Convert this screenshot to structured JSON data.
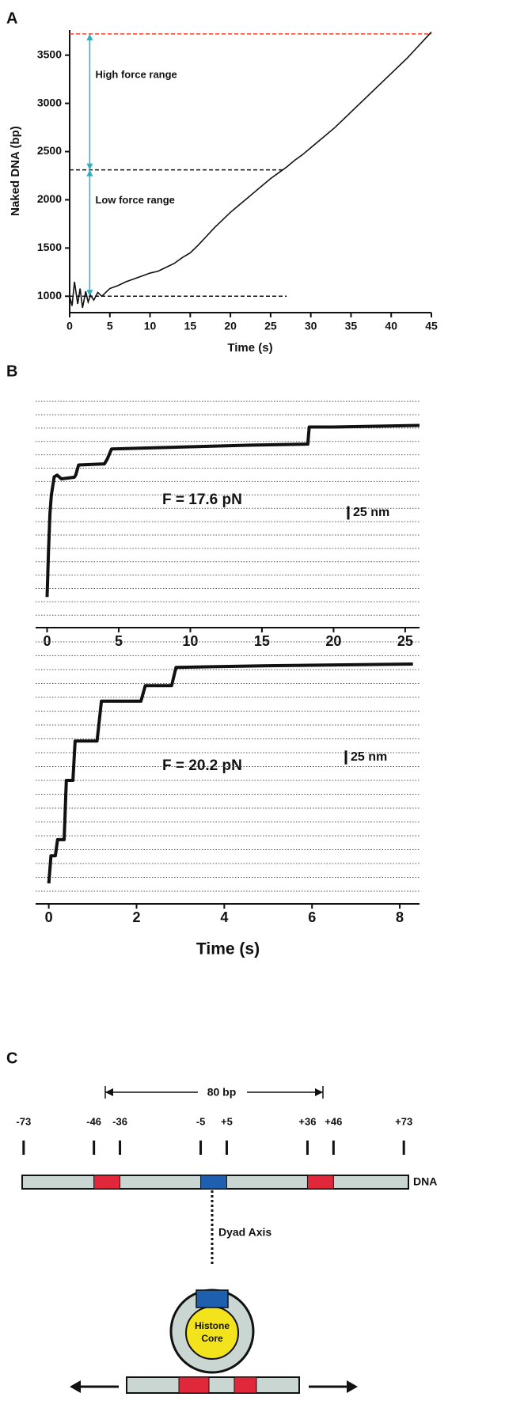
{
  "chart_data": [
    {
      "type": "line",
      "panel_label": "A",
      "x_label": "Time (s)",
      "y_label": "Naked DNA (bp)",
      "xlim": [
        0,
        45
      ],
      "ylim": [
        830,
        3760
      ],
      "xticks": [
        0,
        5,
        10,
        15,
        20,
        25,
        30,
        35,
        40,
        45
      ],
      "yticks": [
        1000,
        1500,
        2000,
        2500,
        3000,
        3500
      ],
      "series": [
        {
          "color": "#111111",
          "x": [
            0,
            0.3,
            0.6,
            1,
            1.3,
            1.6,
            2,
            2.3,
            2.6,
            3,
            3.5,
            4,
            5,
            6,
            7,
            8,
            9,
            10,
            11,
            12,
            13,
            14,
            15,
            16,
            17,
            18,
            19,
            20,
            21,
            22,
            23,
            24,
            25,
            26,
            27,
            28,
            29,
            30,
            31,
            32,
            33,
            34,
            35,
            36,
            37,
            38,
            39,
            40,
            41,
            42,
            43,
            44,
            45
          ],
          "values": [
            1000,
            900,
            1150,
            920,
            1080,
            880,
            1050,
            940,
            1010,
            960,
            1040,
            1000,
            1080,
            1110,
            1150,
            1180,
            1210,
            1240,
            1260,
            1300,
            1340,
            1400,
            1450,
            1530,
            1620,
            1710,
            1790,
            1870,
            1940,
            2010,
            2080,
            2150,
            2220,
            2280,
            2340,
            2410,
            2470,
            2540,
            2610,
            2680,
            2750,
            2830,
            2910,
            2990,
            3070,
            3150,
            3230,
            3310,
            3390,
            3470,
            3560,
            3650,
            3740
          ]
        }
      ],
      "reference_lines": [
        {
          "value": 3720,
          "x_end": 45,
          "color": "#e8432a"
        },
        {
          "value": 2310,
          "x_end": 26.5,
          "color": "#111111"
        },
        {
          "value": 1000,
          "x_end": 27,
          "color": "#111111"
        }
      ],
      "arrow": {
        "x": 2.5,
        "color": "#2ab0c0"
      },
      "annotations": [
        {
          "text": "High force range",
          "x": 3.2,
          "y": 3290
        },
        {
          "text": "Low force range",
          "x": 3.2,
          "y": 1990
        }
      ]
    },
    {
      "type": "step-trace",
      "panel_label": "B",
      "annotation": "F = 17.6 pN",
      "xlim": [
        -0.8,
        26
      ],
      "ylim": [
        -10,
        415
      ],
      "xticks": [
        0,
        5,
        10,
        15,
        20,
        25
      ],
      "scale_bar": {
        "value": 25,
        "label": "25 nm"
      },
      "series": [
        {
          "color": "#111111",
          "x": [
            0,
            0.1,
            0.2,
            0.3,
            0.5,
            0.7,
            1.0,
            1.9,
            2.0,
            2.2,
            4.0,
            4.2,
            4.5,
            6,
            10,
            14,
            18.2,
            18.3,
            20,
            26
          ],
          "values": [
            34,
            120,
            190,
            225,
            259,
            262,
            255,
            258,
            262,
            281,
            283,
            292,
            311,
            312,
            315,
            318,
            320,
            352,
            352,
            355
          ]
        }
      ]
    },
    {
      "type": "step-trace",
      "annotation": "F = 20.2 pN",
      "x_label": "Time (s)",
      "xlim": [
        -0.3,
        8.45
      ],
      "ylim": [
        -10,
        470
      ],
      "xticks": [
        0,
        2,
        4,
        6,
        8
      ],
      "scale_bar": {
        "value": 25,
        "label": "25 nm"
      },
      "series": [
        {
          "color": "#111111",
          "x": [
            0,
            0.05,
            0.15,
            0.2,
            0.35,
            0.4,
            0.55,
            0.6,
            1.1,
            1.2,
            2.1,
            2.2,
            2.8,
            2.9,
            5,
            8.3
          ],
          "values": [
            14,
            64,
            64,
            93,
            93,
            200,
            200,
            271,
            271,
            343,
            343,
            371,
            371,
            404,
            407,
            410
          ]
        }
      ]
    }
  ],
  "diagram": {
    "panel_label": "C",
    "spacing_label": "80 bp",
    "positions": [
      -73,
      -46,
      -36,
      -5,
      {
        "value": 5,
        "label": "+5"
      },
      {
        "value": 36,
        "label": "+36"
      },
      {
        "value": 46,
        "label": "+46"
      },
      {
        "value": 73,
        "label": "+73"
      }
    ],
    "dna_label": "DNA",
    "dyad_label": "Dyad Axis",
    "core_label": [
      "Histone",
      "Core"
    ]
  }
}
